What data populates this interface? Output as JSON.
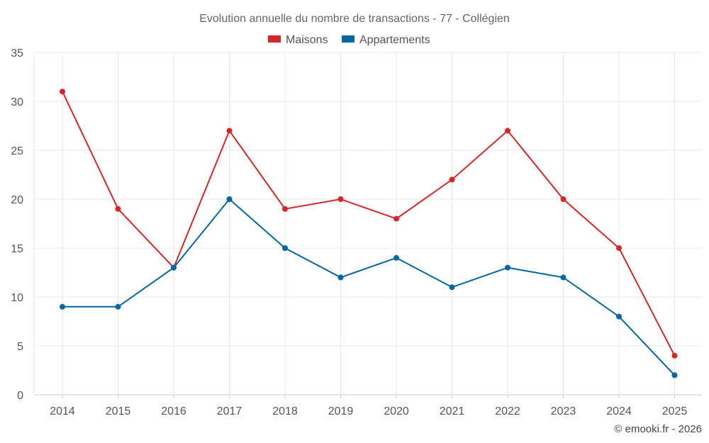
{
  "chart_data": {
    "type": "line",
    "title": "Evolution annuelle du nombre de transactions - 77 - Collégien",
    "categories": [
      "2014",
      "2015",
      "2016",
      "2017",
      "2018",
      "2019",
      "2020",
      "2021",
      "2022",
      "2023",
      "2024",
      "2025"
    ],
    "series": [
      {
        "name": "Maisons",
        "color": "#d62728",
        "values": [
          31,
          19,
          13,
          27,
          19,
          20,
          18,
          22,
          27,
          20,
          15,
          4
        ]
      },
      {
        "name": "Appartements",
        "color": "#0066a0",
        "values": [
          9,
          9,
          13,
          20,
          15,
          12,
          14,
          11,
          13,
          12,
          8,
          2
        ]
      }
    ],
    "ylim": [
      0,
      35
    ],
    "yticks": [
      0,
      5,
      10,
      15,
      20,
      25,
      30,
      35
    ],
    "xlabel": "",
    "ylabel": "",
    "grid": true,
    "legend": "top-center"
  },
  "credit": "© emooki.fr - 2026"
}
